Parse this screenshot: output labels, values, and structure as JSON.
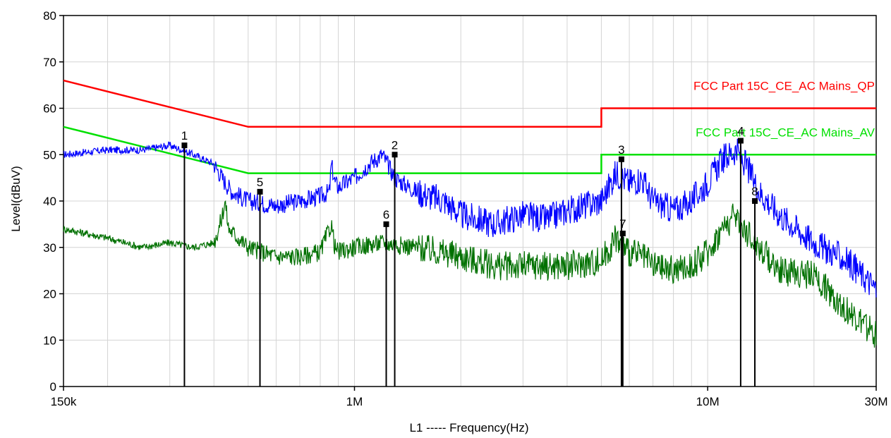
{
  "chart_data": {
    "type": "line",
    "ylabel": "Level(dBuV)",
    "xlabel": "L1 ----- Frequency(Hz)",
    "xscale": "log",
    "xlim": [
      150000,
      30000000
    ],
    "ylim": [
      0,
      80
    ],
    "grid": true,
    "x_ticks": [
      {
        "value": 150000,
        "label": "150k"
      },
      {
        "value": 1000000,
        "label": "1M"
      },
      {
        "value": 10000000,
        "label": "10M"
      },
      {
        "value": 30000000,
        "label": "30M"
      }
    ],
    "y_ticks": [
      0,
      10,
      20,
      30,
      40,
      50,
      60,
      70,
      80
    ],
    "limits": [
      {
        "name": "FCC Part 15C_CE_AC Mains_QP",
        "color": "#ff0000",
        "x": [
          150000,
          500000,
          500000,
          5000000,
          5000000,
          30000000
        ],
        "y": [
          66,
          56,
          56,
          56,
          60,
          60
        ]
      },
      {
        "name": "FCC Part 15C_CE_AC Mains_AV",
        "color": "#00e000",
        "x": [
          150000,
          500000,
          500000,
          5000000,
          5000000,
          30000000
        ],
        "y": [
          56,
          46,
          46,
          46,
          50,
          50
        ]
      }
    ],
    "series": [
      {
        "color": "#0000ff",
        "x": [
          150000,
          200000,
          250000,
          300000,
          350000,
          400000,
          430000,
          450000,
          500000,
          600000,
          700000,
          800000,
          850000,
          860000,
          880000,
          900000,
          1000000,
          1100000,
          1200000,
          1300000,
          1500000,
          1800000,
          2000000,
          2500000,
          3000000,
          3500000,
          4000000,
          4500000,
          5000000,
          5500000,
          6000000,
          6500000,
          7000000,
          8000000,
          9000000,
          10000000,
          11000000,
          12000000,
          13000000,
          14000000,
          16000000,
          20000000,
          25000000,
          30000000
        ],
        "y": [
          50,
          51,
          51,
          52,
          50,
          48,
          44,
          42,
          40,
          39,
          40,
          41,
          42,
          48,
          44,
          43,
          45,
          48,
          50,
          45,
          42,
          40,
          37,
          35,
          37,
          36,
          38,
          39,
          40,
          46,
          44,
          45,
          40,
          38,
          40,
          44,
          49,
          51,
          47,
          42,
          37,
          31,
          27,
          21
        ]
      },
      {
        "color": "#007000",
        "x": [
          150000,
          200000,
          250000,
          300000,
          350000,
          400000,
          420000,
          430000,
          440000,
          500000,
          600000,
          700000,
          800000,
          860000,
          880000,
          900000,
          1000000,
          1200000,
          1500000,
          2000000,
          2500000,
          3000000,
          4000000,
          5000000,
          5500000,
          6000000,
          6500000,
          7000000,
          8000000,
          9000000,
          10000000,
          11000000,
          12000000,
          13000000,
          14000000,
          16000000,
          20000000,
          25000000,
          30000000
        ],
        "y": [
          34,
          32,
          30,
          31,
          30,
          31,
          36,
          40,
          34,
          30,
          28,
          28,
          29,
          35,
          30,
          29,
          30,
          31,
          30,
          28,
          26,
          26,
          26,
          27,
          32,
          29,
          28,
          26,
          25,
          26,
          29,
          34,
          37,
          33,
          30,
          25,
          24,
          16,
          11
        ]
      }
    ],
    "markers": [
      {
        "label": "1",
        "x": 330000,
        "y": 52
      },
      {
        "label": "2",
        "x": 1300000,
        "y": 50
      },
      {
        "label": "3",
        "x": 5700000,
        "y": 49
      },
      {
        "label": "4",
        "x": 12400000,
        "y": 53
      },
      {
        "label": "5",
        "x": 540000,
        "y": 42
      },
      {
        "label": "6",
        "x": 1230000,
        "y": 35
      },
      {
        "label": "7",
        "x": 5750000,
        "y": 33
      },
      {
        "label": "8",
        "x": 13600000,
        "y": 40
      }
    ]
  }
}
